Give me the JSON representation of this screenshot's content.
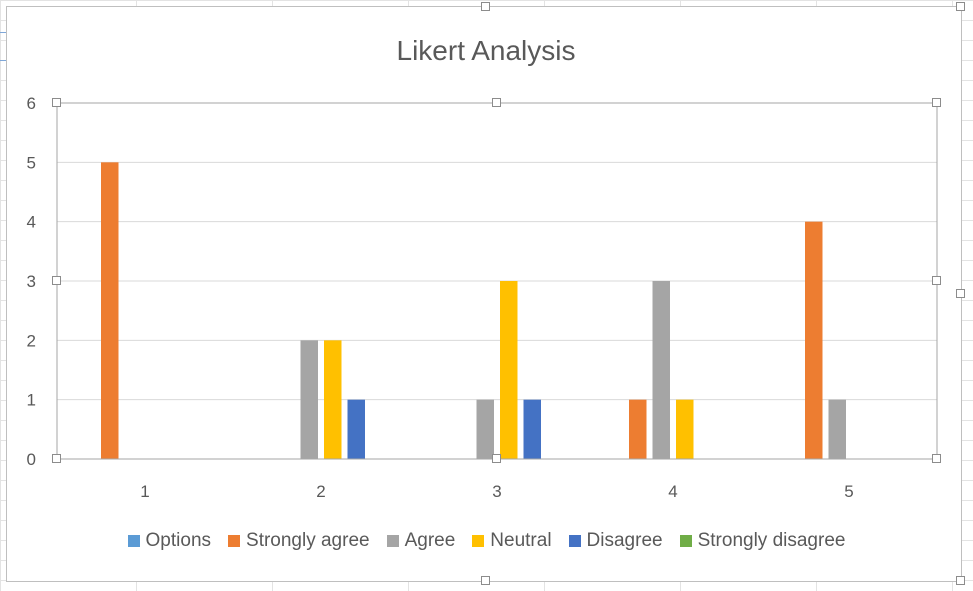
{
  "chart_data": {
    "type": "bar",
    "title": "Likert Analysis",
    "categories": [
      "1",
      "2",
      "3",
      "4",
      "5"
    ],
    "ylim": [
      0,
      6
    ],
    "yticks": [
      "0",
      "1",
      "2",
      "3",
      "4",
      "5",
      "6"
    ],
    "grid": true,
    "legend_position": "bottom",
    "series": [
      {
        "name": "Options",
        "color": "#5b9bd5",
        "values": [
          0,
          0,
          0,
          0,
          0
        ]
      },
      {
        "name": "Strongly agree",
        "color": "#ed7d31",
        "values": [
          5,
          0,
          0,
          1,
          4
        ]
      },
      {
        "name": "Agree",
        "color": "#a5a5a5",
        "values": [
          0,
          2,
          1,
          3,
          1
        ]
      },
      {
        "name": "Neutral",
        "color": "#ffc000",
        "values": [
          0,
          2,
          3,
          1,
          0
        ]
      },
      {
        "name": "Disagree",
        "color": "#4472c4",
        "values": [
          0,
          1,
          1,
          0,
          0
        ]
      },
      {
        "name": "Strongly disagree",
        "color": "#70ad47",
        "values": [
          0,
          0,
          0,
          0,
          0
        ]
      }
    ]
  }
}
